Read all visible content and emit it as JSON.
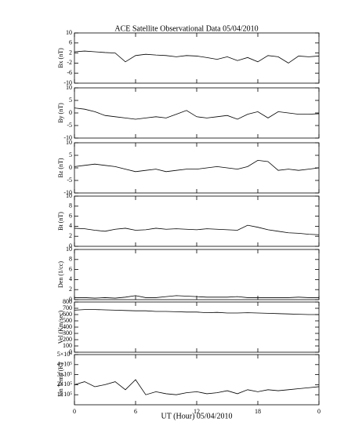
{
  "title": "ACE Satellite Observational Data   05/04/2010",
  "x_label": "UT (Hour)  05/04/2010",
  "xlim": [
    0,
    24
  ],
  "xticks": [
    0,
    6,
    12,
    18,
    {
      "value": 24,
      "label": "0"
    }
  ],
  "x": [
    0,
    1,
    2,
    3,
    4,
    5,
    6,
    7,
    8,
    9,
    10,
    11,
    12,
    13,
    14,
    15,
    16,
    17,
    18,
    19,
    20,
    21,
    22,
    23,
    24
  ],
  "chart_data": [
    {
      "type": "line",
      "ylabel": "Bx (nT)",
      "color": "#000000",
      "ylim": [
        -10,
        10
      ],
      "yticks": [
        -10,
        -6,
        -2,
        2,
        6,
        10
      ],
      "values": [
        2.5,
        2.8,
        2.5,
        2.2,
        2.0,
        -1.5,
        1.0,
        1.5,
        1.2,
        1.0,
        0.5,
        1.0,
        0.8,
        0.2,
        -0.5,
        0.5,
        -1.0,
        0.2,
        -1.5,
        1.0,
        0.5,
        -2.0,
        0.8,
        0.5,
        0.8
      ]
    },
    {
      "type": "line",
      "ylabel": "By (nT)",
      "color": "#000000",
      "ylim": [
        -10,
        10
      ],
      "yticks": [
        -10,
        -5,
        0,
        5,
        10
      ],
      "values": [
        2.0,
        1.5,
        0.5,
        -1.0,
        -1.5,
        -2.0,
        -2.5,
        -2.0,
        -1.5,
        -2.0,
        -0.5,
        1.0,
        -1.5,
        -2.0,
        -1.5,
        -1.0,
        -2.5,
        -0.5,
        0.5,
        -2.0,
        0.5,
        0.0,
        -0.5,
        -0.5,
        -0.3
      ]
    },
    {
      "type": "line",
      "ylabel": "Bz (nT)",
      "color": "#000000",
      "ylim": [
        -10,
        10
      ],
      "yticks": [
        -10,
        -5,
        0,
        5,
        10
      ],
      "values": [
        0.5,
        1.0,
        1.5,
        1.0,
        0.5,
        -0.5,
        -1.5,
        -1.0,
        -0.5,
        -1.5,
        -1.0,
        -0.5,
        -0.5,
        0,
        0.5,
        0,
        -0.5,
        0.5,
        3.0,
        2.5,
        -1.0,
        -0.5,
        -1.0,
        -0.5,
        0
      ]
    },
    {
      "type": "line",
      "ylabel": "Bt (nT)",
      "color": "#000000",
      "ylim": [
        0,
        10
      ],
      "yticks": [
        0,
        2,
        4,
        6,
        8,
        10
      ],
      "values": [
        3.6,
        3.5,
        3.2,
        3.0,
        3.4,
        3.6,
        3.2,
        3.3,
        3.6,
        3.4,
        3.5,
        3.4,
        3.3,
        3.5,
        3.4,
        3.3,
        3.2,
        4.2,
        3.8,
        3.3,
        3.0,
        2.7,
        2.6,
        2.4,
        2.3
      ]
    },
    {
      "type": "line",
      "ylabel": "Den (1/cc)",
      "color": "#000000",
      "ylim": [
        0,
        10
      ],
      "yticks": [
        0,
        2,
        4,
        6,
        8,
        10
      ],
      "values": [
        0.4,
        0.4,
        0.3,
        0.4,
        0.3,
        0.5,
        0.8,
        0.4,
        0.4,
        0.6,
        0.8,
        0.7,
        0.6,
        0.5,
        0.5,
        0.5,
        0.6,
        0.4,
        0.4,
        0.4,
        0.4,
        0.4,
        0.5,
        0.4,
        0.4
      ]
    },
    {
      "type": "line",
      "ylabel": "Vel (Km/sec)",
      "color": "#000000",
      "ylim": [
        0,
        800
      ],
      "yticks": [
        0,
        100,
        200,
        300,
        400,
        500,
        600,
        700,
        800
      ],
      "values": [
        670,
        680,
        680,
        675,
        670,
        665,
        660,
        660,
        650,
        650,
        645,
        640,
        640,
        630,
        635,
        625,
        625,
        630,
        625,
        620,
        615,
        610,
        605,
        600,
        600
      ]
    },
    {
      "type": "line",
      "ylabel": "Ion Temp (K)",
      "color": "#000000",
      "ylim": [
        0,
        500000
      ],
      "yticks": [
        {
          "value": 100000,
          "label": "1×10⁵"
        },
        {
          "value": 200000,
          "label": "2×10⁵"
        },
        {
          "value": 300000,
          "label": "3×10⁵"
        },
        {
          "value": 400000,
          "label": "4×10⁵"
        },
        {
          "value": 500000,
          "label": "5×10⁵"
        }
      ],
      "values": [
        200000,
        230000,
        180000,
        200000,
        230000,
        150000,
        250000,
        100000,
        130000,
        110000,
        100000,
        120000,
        130000,
        110000,
        120000,
        140000,
        110000,
        150000,
        130000,
        150000,
        140000,
        150000,
        160000,
        170000,
        180000
      ]
    }
  ]
}
